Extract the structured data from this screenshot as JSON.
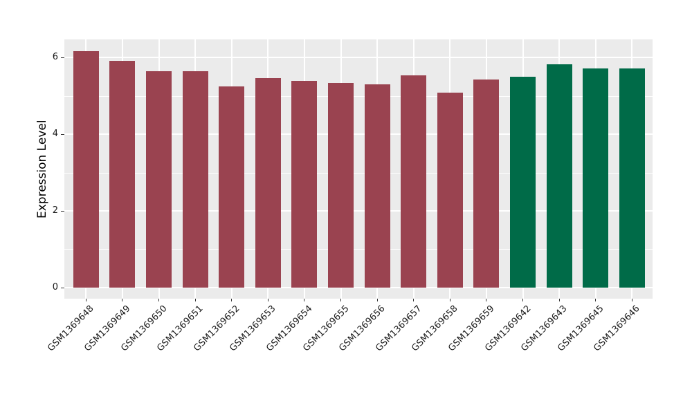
{
  "figure": {
    "background_color": "#FFFFFF",
    "panel_background_color": "#EBEBEB",
    "gridline_color": "#FFFFFF",
    "axis_text_color": "#1a1a1a",
    "tick_mark_color": "#333333"
  },
  "chart_data": {
    "type": "bar",
    "title": "",
    "xlabel": "",
    "ylabel": "Expression Level",
    "categories": [
      "GSM1369648",
      "GSM1369649",
      "GSM1369650",
      "GSM1369651",
      "GSM1369652",
      "GSM1369653",
      "GSM1369654",
      "GSM1369655",
      "GSM1369656",
      "GSM1369657",
      "GSM1369658",
      "GSM1369659",
      "GSM1369642",
      "GSM1369643",
      "GSM1369645",
      "GSM1369646"
    ],
    "values": [
      6.17,
      5.92,
      5.65,
      5.65,
      5.24,
      5.47,
      5.4,
      5.34,
      5.31,
      5.54,
      5.09,
      5.43,
      5.5,
      5.83,
      5.71,
      5.72
    ],
    "bar_colors": [
      "#9A4350",
      "#9A4350",
      "#9A4350",
      "#9A4350",
      "#9A4350",
      "#9A4350",
      "#9A4350",
      "#9A4350",
      "#9A4350",
      "#9A4350",
      "#9A4350",
      "#9A4350",
      "#006B48",
      "#006B48",
      "#006B48",
      "#006B48"
    ],
    "group_colors": {
      "maroon_group": "#9A4350",
      "green_group": "#006B48"
    },
    "yticks_major": [
      0,
      2,
      4,
      6
    ],
    "yticks_minor": [
      1,
      3,
      5
    ],
    "ylim": [
      0,
      6.49
    ],
    "grid": "horizontal major+minor, vertical at category centers",
    "legend": "none",
    "x_label_rotation_deg": 45
  }
}
